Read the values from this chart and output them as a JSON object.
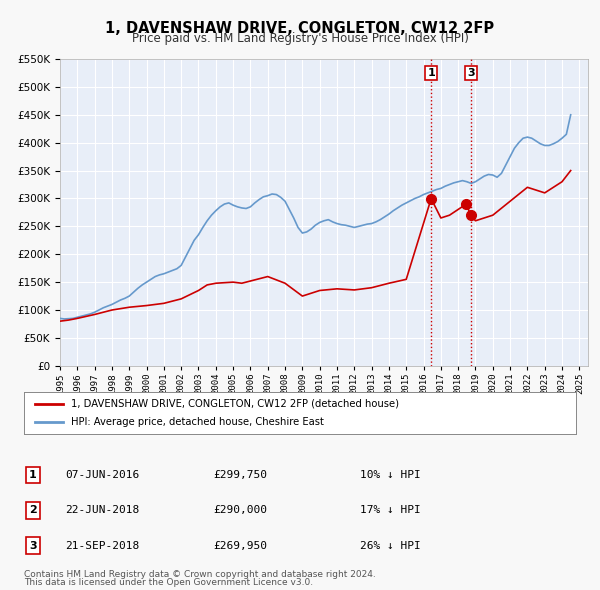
{
  "title": "1, DAVENSHAW DRIVE, CONGLETON, CW12 2FP",
  "subtitle": "Price paid vs. HM Land Registry's House Price Index (HPI)",
  "background_color": "#f0f4ff",
  "plot_bg_color": "#e8eef8",
  "grid_color": "#ffffff",
  "ylim": [
    0,
    550000
  ],
  "yticks": [
    0,
    50000,
    100000,
    150000,
    200000,
    250000,
    300000,
    350000,
    400000,
    450000,
    500000,
    550000
  ],
  "ytick_labels": [
    "£0",
    "£50K",
    "£100K",
    "£150K",
    "£200K",
    "£250K",
    "£300K",
    "£350K",
    "£400K",
    "£450K",
    "£500K",
    "£550K"
  ],
  "xlim_start": 1995.0,
  "xlim_end": 2025.5,
  "legend_label_red": "1, DAVENSHAW DRIVE, CONGLETON, CW12 2FP (detached house)",
  "legend_label_blue": "HPI: Average price, detached house, Cheshire East",
  "annotation1_date": 2016.44,
  "annotation1_price": 299750,
  "annotation1_label": "1",
  "annotation2_date": 2018.47,
  "annotation2_price": 290000,
  "annotation2_label": "2",
  "annotation3_date": 2018.72,
  "annotation3_price": 269950,
  "annotation3_label": "3",
  "table_rows": [
    [
      "1",
      "07-JUN-2016",
      "£299,750",
      "10% ↓ HPI"
    ],
    [
      "2",
      "22-JUN-2018",
      "£290,000",
      "17% ↓ HPI"
    ],
    [
      "3",
      "21-SEP-2018",
      "£269,950",
      "26% ↓ HPI"
    ]
  ],
  "footnote1": "Contains HM Land Registry data © Crown copyright and database right 2024.",
  "footnote2": "This data is licensed under the Open Government Licence v3.0.",
  "red_color": "#cc0000",
  "blue_color": "#6699cc",
  "marker_color": "#cc0000",
  "vline_color": "#cc0000",
  "hpi_data": {
    "years": [
      1995.0,
      1995.25,
      1995.5,
      1995.75,
      1996.0,
      1996.25,
      1996.5,
      1996.75,
      1997.0,
      1997.25,
      1997.5,
      1997.75,
      1998.0,
      1998.25,
      1998.5,
      1998.75,
      1999.0,
      1999.25,
      1999.5,
      1999.75,
      2000.0,
      2000.25,
      2000.5,
      2000.75,
      2001.0,
      2001.25,
      2001.5,
      2001.75,
      2002.0,
      2002.25,
      2002.5,
      2002.75,
      2003.0,
      2003.25,
      2003.5,
      2003.75,
      2004.0,
      2004.25,
      2004.5,
      2004.75,
      2005.0,
      2005.25,
      2005.5,
      2005.75,
      2006.0,
      2006.25,
      2006.5,
      2006.75,
      2007.0,
      2007.25,
      2007.5,
      2007.75,
      2008.0,
      2008.25,
      2008.5,
      2008.75,
      2009.0,
      2009.25,
      2009.5,
      2009.75,
      2010.0,
      2010.25,
      2010.5,
      2010.75,
      2011.0,
      2011.25,
      2011.5,
      2011.75,
      2012.0,
      2012.25,
      2012.5,
      2012.75,
      2013.0,
      2013.25,
      2013.5,
      2013.75,
      2014.0,
      2014.25,
      2014.5,
      2014.75,
      2015.0,
      2015.25,
      2015.5,
      2015.75,
      2016.0,
      2016.25,
      2016.5,
      2016.75,
      2017.0,
      2017.25,
      2017.5,
      2017.75,
      2018.0,
      2018.25,
      2018.5,
      2018.75,
      2019.0,
      2019.25,
      2019.5,
      2019.75,
      2020.0,
      2020.25,
      2020.5,
      2020.75,
      2021.0,
      2021.25,
      2021.5,
      2021.75,
      2022.0,
      2022.25,
      2022.5,
      2022.75,
      2023.0,
      2023.25,
      2023.5,
      2023.75,
      2024.0,
      2024.25,
      2024.5
    ],
    "values": [
      85000,
      84000,
      84500,
      85000,
      87000,
      89000,
      91000,
      93000,
      96000,
      100000,
      104000,
      107000,
      110000,
      114000,
      118000,
      121000,
      125000,
      132000,
      139000,
      145000,
      150000,
      155000,
      160000,
      163000,
      165000,
      168000,
      171000,
      174000,
      180000,
      195000,
      210000,
      225000,
      235000,
      248000,
      260000,
      270000,
      278000,
      285000,
      290000,
      292000,
      288000,
      285000,
      283000,
      282000,
      285000,
      292000,
      298000,
      303000,
      305000,
      308000,
      307000,
      302000,
      295000,
      280000,
      265000,
      248000,
      238000,
      240000,
      245000,
      252000,
      257000,
      260000,
      262000,
      258000,
      255000,
      253000,
      252000,
      250000,
      248000,
      250000,
      252000,
      254000,
      255000,
      258000,
      262000,
      267000,
      272000,
      278000,
      283000,
      288000,
      292000,
      296000,
      300000,
      303000,
      307000,
      310000,
      313000,
      316000,
      318000,
      322000,
      325000,
      328000,
      330000,
      332000,
      330000,
      327000,
      330000,
      335000,
      340000,
      343000,
      342000,
      338000,
      345000,
      360000,
      375000,
      390000,
      400000,
      408000,
      410000,
      408000,
      403000,
      398000,
      395000,
      395000,
      398000,
      402000,
      408000,
      415000,
      450000
    ]
  },
  "price_data": {
    "years": [
      1995.0,
      1995.5,
      1996.0,
      1997.0,
      1998.0,
      1999.0,
      2000.0,
      2001.0,
      2002.0,
      2003.0,
      2003.5,
      2004.0,
      2005.0,
      2005.5,
      2006.0,
      2007.0,
      2008.0,
      2009.0,
      2010.0,
      2011.0,
      2012.0,
      2013.0,
      2014.0,
      2015.0,
      2016.44,
      2017.0,
      2017.5,
      2018.47,
      2018.72,
      2019.0,
      2020.0,
      2021.0,
      2022.0,
      2023.0,
      2024.0,
      2024.5
    ],
    "values": [
      80000,
      82000,
      85000,
      92000,
      100000,
      105000,
      108000,
      112000,
      120000,
      135000,
      145000,
      148000,
      150000,
      148000,
      152000,
      160000,
      148000,
      125000,
      135000,
      138000,
      136000,
      140000,
      148000,
      155000,
      299750,
      265000,
      270000,
      290000,
      269950,
      260000,
      270000,
      295000,
      320000,
      310000,
      330000,
      350000
    ]
  }
}
